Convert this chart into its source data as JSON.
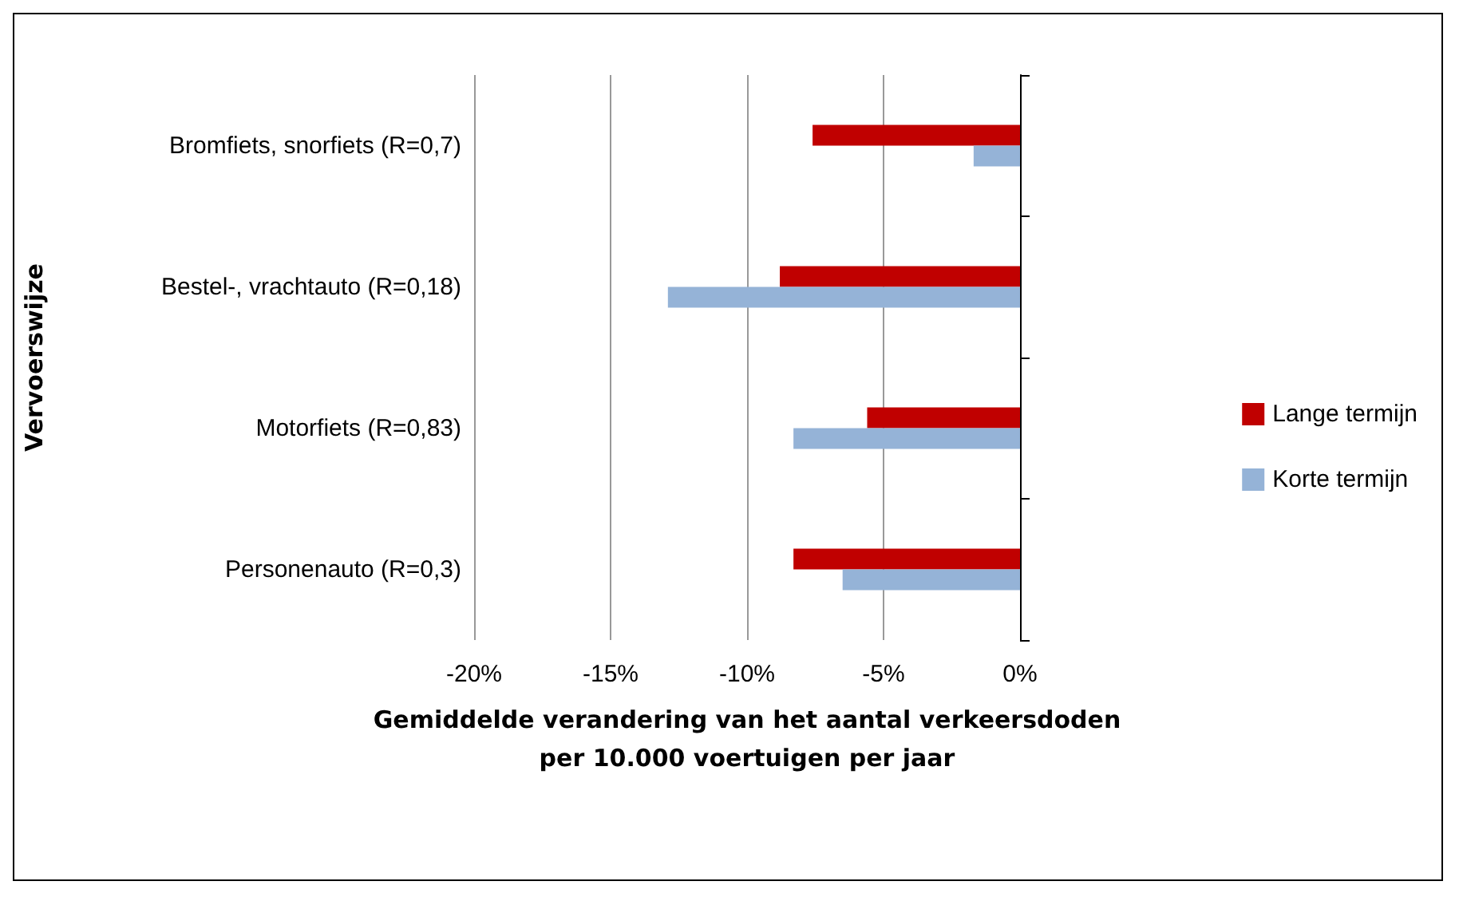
{
  "chart_data": {
    "type": "bar",
    "orientation": "horizontal",
    "xlabel": "Gemiddelde verandering van het aantal verkeersdoden\nper 10.000 voertuigen per jaar",
    "ylabel": "Vervoerswijze",
    "categories": [
      "Bromfiets, snorfiets (R=0,7)",
      "Bestel-, vrachtauto (R=0,18)",
      "Motorfiets (R=0,83)",
      "Personenauto (R=0,3)"
    ],
    "series": [
      {
        "name": "Lange termijn",
        "color": "#c00000",
        "values": [
          -7.6,
          -8.8,
          -5.6,
          -8.3
        ]
      },
      {
        "name": "Korte termijn",
        "color": "#95b3d7",
        "values": [
          -1.7,
          -12.9,
          -8.3,
          -6.5
        ]
      }
    ],
    "xlim": [
      -20,
      0
    ],
    "xticks": [
      {
        "value": -20,
        "label": "-20%"
      },
      {
        "value": -15,
        "label": "-15%"
      },
      {
        "value": -10,
        "label": "-10%"
      },
      {
        "value": -5,
        "label": "-5%"
      },
      {
        "value": 0,
        "label": "0%"
      }
    ],
    "grid": "x",
    "legend": "right"
  }
}
